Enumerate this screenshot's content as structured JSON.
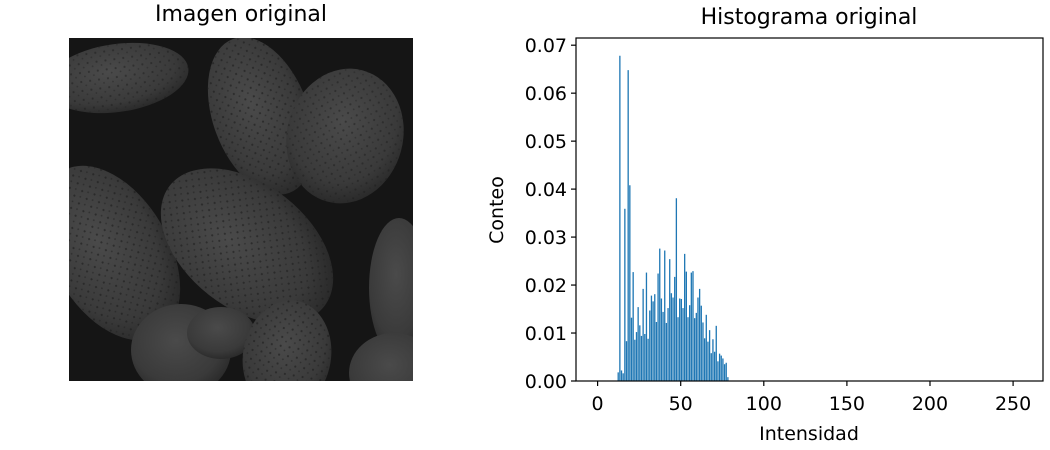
{
  "left_panel": {
    "title": "Imagen original"
  },
  "chart_data": {
    "type": "bar",
    "title": "Histograma original",
    "xlabel": "Intensidad",
    "ylabel": "Conteo",
    "xlim": [
      -13,
      268
    ],
    "ylim": [
      0,
      0.0715
    ],
    "xticks": [
      0,
      50,
      100,
      150,
      200,
      250
    ],
    "yticks": [
      0.0,
      0.01,
      0.02,
      0.03,
      0.04,
      0.05,
      0.06,
      0.07
    ],
    "ytick_labels": [
      "0.00",
      "0.01",
      "0.02",
      "0.03",
      "0.04",
      "0.05",
      "0.06",
      "0.07"
    ],
    "bar_color": "#1f77b4",
    "bin_width": 1,
    "x": [
      12,
      13,
      14,
      15,
      16,
      17,
      18,
      19,
      20,
      21,
      22,
      23,
      24,
      25,
      26,
      27,
      28,
      29,
      30,
      31,
      32,
      33,
      34,
      35,
      36,
      37,
      38,
      39,
      40,
      41,
      42,
      43,
      44,
      45,
      46,
      47,
      48,
      49,
      50,
      51,
      52,
      53,
      54,
      55,
      56,
      57,
      58,
      59,
      60,
      61,
      62,
      63,
      64,
      65,
      66,
      67,
      68,
      69,
      70,
      71,
      72,
      73,
      74,
      75,
      76,
      77,
      78
    ],
    "values": [
      0.0018,
      0.0678,
      0.0022,
      0.0016,
      0.0359,
      0.0083,
      0.0648,
      0.0408,
      0.0132,
      0.0227,
      0.0086,
      0.0102,
      0.0154,
      0.0116,
      0.0094,
      0.0192,
      0.0098,
      0.0226,
      0.0088,
      0.0147,
      0.0178,
      0.0166,
      0.0181,
      0.0123,
      0.0224,
      0.0276,
      0.0172,
      0.0144,
      0.0272,
      0.0121,
      0.0152,
      0.0254,
      0.0183,
      0.0174,
      0.0217,
      0.0381,
      0.0133,
      0.0172,
      0.0171,
      0.0152,
      0.0265,
      0.0228,
      0.0133,
      0.0158,
      0.0226,
      0.0229,
      0.0131,
      0.0142,
      0.0174,
      0.0192,
      0.0157,
      0.0122,
      0.0089,
      0.0138,
      0.0082,
      0.0106,
      0.0058,
      0.0087,
      0.0061,
      0.0115,
      0.0041,
      0.0057,
      0.0053,
      0.0047,
      0.0035,
      0.0038,
      0.0008
    ]
  }
}
